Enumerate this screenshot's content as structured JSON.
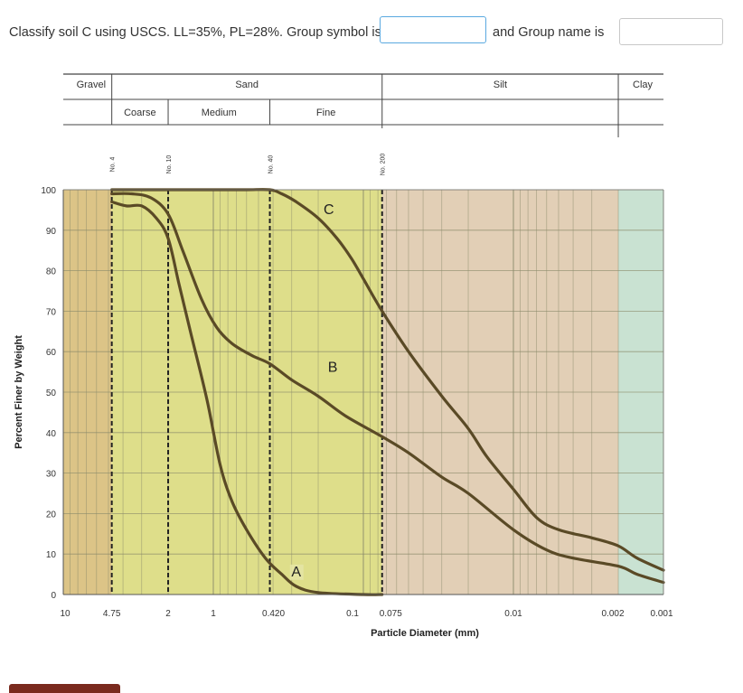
{
  "question": {
    "prompt": "Classify soil C using USCS. LL=35%, PL=28%. Group symbol is",
    "mid_text": "and Group name is",
    "group_symbol_value": "",
    "group_name_value": ""
  },
  "chart_data": {
    "type": "line",
    "xlabel": "Particle Diameter (mm)",
    "ylabel": "Percent Finer by Weight",
    "x_scale": "log",
    "x_reversed": true,
    "xlim": [
      10,
      0.001
    ],
    "ylim": [
      0,
      100
    ],
    "x_tick_labels": [
      {
        "value": 10,
        "label": "10"
      },
      {
        "value": 4.75,
        "label": "4.75"
      },
      {
        "value": 2,
        "label": "2"
      },
      {
        "value": 1,
        "label": "1"
      },
      {
        "value": 0.42,
        "label": "0.420"
      },
      {
        "value": 0.1,
        "label": "0.1"
      },
      {
        "value": 0.075,
        "label": "0.075"
      },
      {
        "value": 0.01,
        "label": "0.01"
      },
      {
        "value": 0.002,
        "label": "0.002"
      },
      {
        "value": 0.001,
        "label": "0.001"
      }
    ],
    "y_ticks": [
      0,
      10,
      20,
      30,
      40,
      50,
      60,
      70,
      80,
      90,
      100
    ],
    "sieves": [
      {
        "label": "No. 4",
        "value": 4.75
      },
      {
        "label": "No. 10",
        "value": 2
      },
      {
        "label": "No. 40",
        "value": 0.42
      },
      {
        "label": "No. 200",
        "value": 0.075
      }
    ],
    "zones": [
      {
        "name": "Gravel",
        "from": 10,
        "to": 4.75,
        "color": "#dcc487"
      },
      {
        "name": "Sand",
        "from": 4.75,
        "to": 0.075,
        "color": "#dede8a"
      },
      {
        "name": "Silt",
        "from": 0.075,
        "to": 0.002,
        "color": "#e2cfb6"
      },
      {
        "name": "Clay",
        "from": 0.002,
        "to": 0.001,
        "color": "#c9e2d2"
      }
    ],
    "sand_subdivisions": [
      {
        "name": "Coarse",
        "from": 4.75,
        "to": 2
      },
      {
        "name": "Medium",
        "from": 2,
        "to": 0.42
      },
      {
        "name": "Fine",
        "from": 0.42,
        "to": 0.075
      }
    ],
    "grid": true,
    "series": [
      {
        "name": "A",
        "color": "#5a4a26",
        "points": [
          [
            4.75,
            97
          ],
          [
            3.8,
            96
          ],
          [
            3,
            96
          ],
          [
            2.4,
            93
          ],
          [
            2.0,
            88
          ],
          [
            1.7,
            77
          ],
          [
            1.4,
            64
          ],
          [
            1.1,
            48
          ],
          [
            0.9,
            32
          ],
          [
            0.75,
            23
          ],
          [
            0.6,
            16
          ],
          [
            0.45,
            9
          ],
          [
            0.35,
            5
          ],
          [
            0.28,
            2
          ],
          [
            0.2,
            0.5
          ],
          [
            0.1,
            0
          ],
          [
            0.075,
            0
          ]
        ]
      },
      {
        "name": "B",
        "color": "#5a4a26",
        "points": [
          [
            4.75,
            99
          ],
          [
            3.5,
            99
          ],
          [
            2.6,
            98
          ],
          [
            2.0,
            94
          ],
          [
            1.6,
            85
          ],
          [
            1.2,
            73
          ],
          [
            0.95,
            66
          ],
          [
            0.75,
            62
          ],
          [
            0.55,
            59
          ],
          [
            0.42,
            57
          ],
          [
            0.3,
            53
          ],
          [
            0.2,
            49
          ],
          [
            0.13,
            44
          ],
          [
            0.075,
            39
          ],
          [
            0.05,
            35
          ],
          [
            0.03,
            29
          ],
          [
            0.02,
            25
          ],
          [
            0.01,
            16
          ],
          [
            0.006,
            11
          ],
          [
            0.004,
            9
          ],
          [
            0.002,
            7
          ],
          [
            0.0015,
            5
          ],
          [
            0.001,
            3
          ]
        ]
      },
      {
        "name": "C",
        "color": "#5a4a26",
        "points": [
          [
            4.75,
            100
          ],
          [
            1.0,
            100
          ],
          [
            0.6,
            100
          ],
          [
            0.42,
            100
          ],
          [
            0.35,
            99
          ],
          [
            0.28,
            97
          ],
          [
            0.2,
            93
          ],
          [
            0.15,
            88
          ],
          [
            0.12,
            83
          ],
          [
            0.1,
            78
          ],
          [
            0.075,
            70
          ],
          [
            0.05,
            60
          ],
          [
            0.03,
            49
          ],
          [
            0.02,
            41
          ],
          [
            0.015,
            34
          ],
          [
            0.01,
            26
          ],
          [
            0.007,
            19
          ],
          [
            0.005,
            16
          ],
          [
            0.003,
            14
          ],
          [
            0.002,
            12
          ],
          [
            0.0015,
            9
          ],
          [
            0.001,
            6
          ]
        ]
      }
    ]
  }
}
